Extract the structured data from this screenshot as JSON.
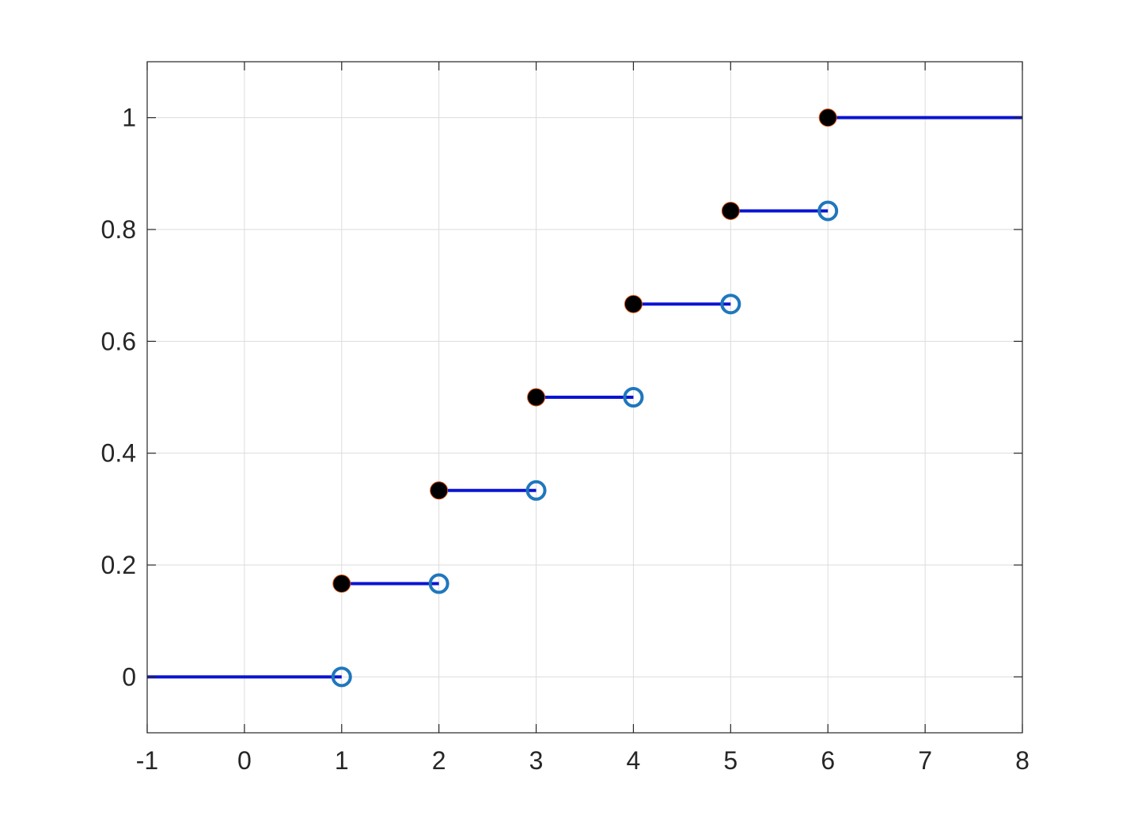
{
  "chart_data": {
    "type": "line",
    "title": "",
    "xlabel": "",
    "ylabel": "",
    "xlim": [
      -1,
      8
    ],
    "ylim": [
      -0.1,
      1.1
    ],
    "xticks": [
      "-1",
      "0",
      "1",
      "2",
      "3",
      "4",
      "5",
      "6",
      "7",
      "8"
    ],
    "yticks": [
      "0",
      "0.2",
      "0.4",
      "0.6",
      "0.8",
      "1"
    ],
    "grid": true,
    "legend": "none",
    "series": [
      {
        "style": "step",
        "segments": [
          {
            "x0": -1,
            "x1": 1,
            "y": 0,
            "closed_start": false,
            "open_end": true
          },
          {
            "x0": 1,
            "x1": 2,
            "y": 0.1667,
            "closed_start": true,
            "open_end": true
          },
          {
            "x0": 2,
            "x1": 3,
            "y": 0.3333,
            "closed_start": true,
            "open_end": true
          },
          {
            "x0": 3,
            "x1": 4,
            "y": 0.5,
            "closed_start": true,
            "open_end": true
          },
          {
            "x0": 4,
            "x1": 5,
            "y": 0.6667,
            "closed_start": true,
            "open_end": true
          },
          {
            "x0": 5,
            "x1": 6,
            "y": 0.8333,
            "closed_start": true,
            "open_end": true
          },
          {
            "x0": 6,
            "x1": 8,
            "y": 1,
            "closed_start": true,
            "open_end": false
          }
        ]
      }
    ],
    "colors": {
      "line": "#0a14d2",
      "open_marker": "#1f77bd",
      "closed_marker": "#000000",
      "closed_marker_edge": "#d95319",
      "axis": "#262626",
      "grid": "#dcdcdc"
    }
  }
}
